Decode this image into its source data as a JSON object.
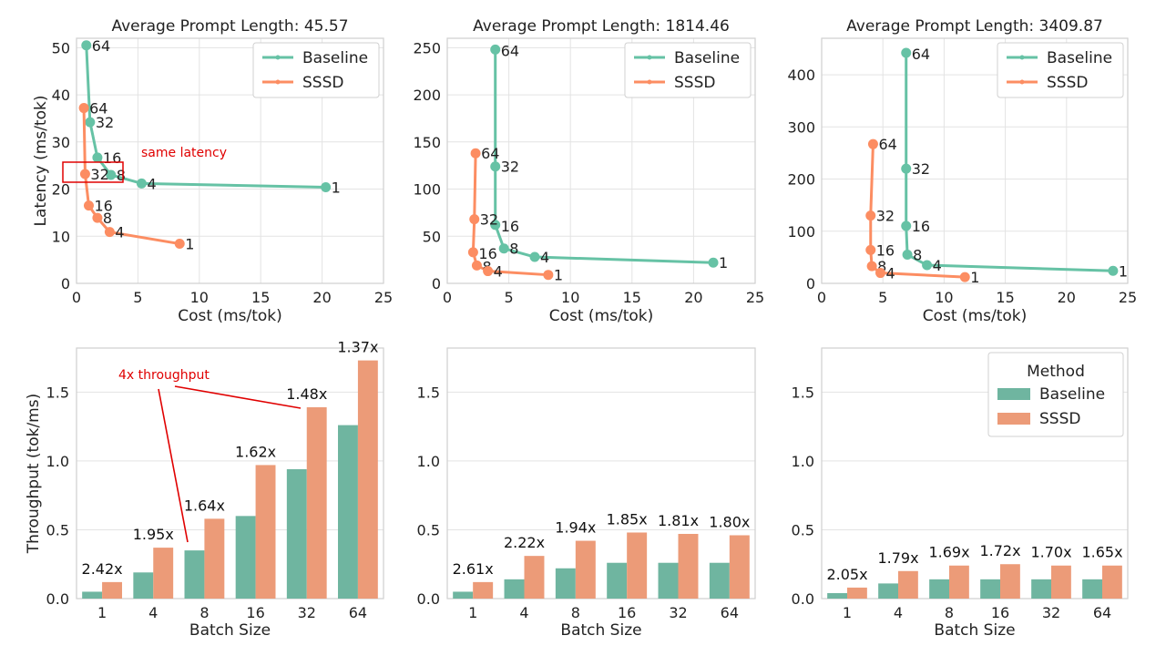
{
  "colors": {
    "baseline": "#66c2a5",
    "sssd": "#fc8d62",
    "baseline_bar": "#6fb5a0",
    "sssd_bar": "#ec9b78",
    "annotation": "#e00000"
  },
  "chart_data": [
    {
      "type": "line",
      "title": "Average Prompt Length: 45.57",
      "xlabel": "Cost (ms/tok)",
      "ylabel": "Latency (ms/tok)",
      "xlim": [
        0,
        25
      ],
      "ylim": [
        0,
        52
      ],
      "xticks": [
        0,
        5,
        10,
        15,
        20,
        25
      ],
      "yticks": [
        0,
        10,
        20,
        30,
        40,
        50
      ],
      "legend": "top-right",
      "series": [
        {
          "name": "Baseline",
          "points": [
            {
              "label": "64",
              "x": 0.8,
              "y": 50.5
            },
            {
              "label": "32",
              "x": 1.1,
              "y": 34.2
            },
            {
              "label": "16",
              "x": 1.7,
              "y": 26.7
            },
            {
              "label": "8",
              "x": 2.8,
              "y": 23.0
            },
            {
              "label": "4",
              "x": 5.3,
              "y": 21.2
            },
            {
              "label": "1",
              "x": 20.3,
              "y": 20.4
            }
          ]
        },
        {
          "name": "SSSD",
          "points": [
            {
              "label": "64",
              "x": 0.6,
              "y": 37.2
            },
            {
              "label": "32",
              "x": 0.7,
              "y": 23.2
            },
            {
              "label": "16",
              "x": 1.0,
              "y": 16.5
            },
            {
              "label": "8",
              "x": 1.7,
              "y": 13.9
            },
            {
              "label": "4",
              "x": 2.7,
              "y": 10.9
            },
            {
              "label": "1",
              "x": 8.4,
              "y": 8.4
            }
          ]
        }
      ],
      "annotation": {
        "text": "same latency"
      }
    },
    {
      "type": "line",
      "title": "Average Prompt Length: 1814.46",
      "xlabel": "Cost (ms/tok)",
      "ylabel": "",
      "xlim": [
        0,
        25
      ],
      "ylim": [
        0,
        260
      ],
      "xticks": [
        0,
        5,
        10,
        15,
        20,
        25
      ],
      "yticks": [
        0,
        50,
        100,
        150,
        200,
        250
      ],
      "legend": "top-right",
      "series": [
        {
          "name": "Baseline",
          "points": [
            {
              "label": "64",
              "x": 3.9,
              "y": 248
            },
            {
              "label": "32",
              "x": 3.9,
              "y": 124
            },
            {
              "label": "16",
              "x": 3.9,
              "y": 62
            },
            {
              "label": "8",
              "x": 4.6,
              "y": 37
            },
            {
              "label": "4",
              "x": 7.1,
              "y": 28
            },
            {
              "label": "1",
              "x": 21.6,
              "y": 22
            }
          ]
        },
        {
          "name": "SSSD",
          "points": [
            {
              "label": "64",
              "x": 2.3,
              "y": 138
            },
            {
              "label": "32",
              "x": 2.2,
              "y": 68
            },
            {
              "label": "16",
              "x": 2.1,
              "y": 33
            },
            {
              "label": "8",
              "x": 2.4,
              "y": 19
            },
            {
              "label": "4",
              "x": 3.3,
              "y": 13
            },
            {
              "label": "1",
              "x": 8.2,
              "y": 9
            }
          ]
        }
      ]
    },
    {
      "type": "line",
      "title": "Average Prompt Length: 3409.87",
      "xlabel": "Cost (ms/tok)",
      "ylabel": "",
      "xlim": [
        0,
        25
      ],
      "ylim": [
        0,
        470
      ],
      "xticks": [
        0,
        5,
        10,
        15,
        20,
        25
      ],
      "yticks": [
        0,
        100,
        200,
        300,
        400
      ],
      "legend": "top-right",
      "series": [
        {
          "name": "Baseline",
          "points": [
            {
              "label": "64",
              "x": 6.9,
              "y": 442
            },
            {
              "label": "32",
              "x": 6.9,
              "y": 220
            },
            {
              "label": "16",
              "x": 6.9,
              "y": 110
            },
            {
              "label": "8",
              "x": 7.0,
              "y": 55
            },
            {
              "label": "4",
              "x": 8.6,
              "y": 35
            },
            {
              "label": "1",
              "x": 23.8,
              "y": 24
            }
          ]
        },
        {
          "name": "SSSD",
          "points": [
            {
              "label": "64",
              "x": 4.2,
              "y": 267
            },
            {
              "label": "32",
              "x": 4.0,
              "y": 130
            },
            {
              "label": "16",
              "x": 4.0,
              "y": 64
            },
            {
              "label": "8",
              "x": 4.1,
              "y": 33
            },
            {
              "label": "4",
              "x": 4.8,
              "y": 20
            },
            {
              "label": "1",
              "x": 11.7,
              "y": 12
            }
          ]
        }
      ]
    },
    {
      "type": "bar",
      "title": "",
      "xlabel": "Batch Size",
      "ylabel": "Throughput (tok/ms)",
      "ylim": [
        0,
        1.82
      ],
      "yticks": [
        0.0,
        0.5,
        1.0,
        1.5
      ],
      "ytick_labels": [
        "0.0",
        "0.5",
        "1.0",
        "1.5"
      ],
      "categories": [
        "1",
        "4",
        "8",
        "16",
        "32",
        "64"
      ],
      "series": [
        {
          "name": "Baseline",
          "values": [
            0.05,
            0.19,
            0.35,
            0.6,
            0.94,
            1.26
          ]
        },
        {
          "name": "SSSD",
          "values": [
            0.12,
            0.37,
            0.58,
            0.97,
            1.39,
            1.73
          ]
        }
      ],
      "speedups": [
        "2.42x",
        "1.95x",
        "1.64x",
        "1.62x",
        "1.48x",
        "1.37x"
      ],
      "annotation": {
        "text": "4x throughput"
      }
    },
    {
      "type": "bar",
      "title": "",
      "xlabel": "Batch Size",
      "ylabel": "",
      "ylim": [
        0,
        1.82
      ],
      "yticks": [
        0.0,
        0.5,
        1.0,
        1.5
      ],
      "ytick_labels": [
        "0.0",
        "0.5",
        "1.0",
        "1.5"
      ],
      "categories": [
        "1",
        "4",
        "8",
        "16",
        "32",
        "64"
      ],
      "series": [
        {
          "name": "Baseline",
          "values": [
            0.05,
            0.14,
            0.22,
            0.26,
            0.26,
            0.26
          ]
        },
        {
          "name": "SSSD",
          "values": [
            0.12,
            0.31,
            0.42,
            0.48,
            0.47,
            0.46
          ]
        }
      ],
      "speedups": [
        "2.61x",
        "2.22x",
        "1.94x",
        "1.85x",
        "1.81x",
        "1.80x"
      ]
    },
    {
      "type": "bar",
      "title": "",
      "xlabel": "Batch Size",
      "ylabel": "",
      "ylim": [
        0,
        1.82
      ],
      "yticks": [
        0.0,
        0.5,
        1.0,
        1.5
      ],
      "ytick_labels": [
        "0.0",
        "0.5",
        "1.0",
        "1.5"
      ],
      "categories": [
        "1",
        "4",
        "8",
        "16",
        "32",
        "64"
      ],
      "series": [
        {
          "name": "Baseline",
          "values": [
            0.04,
            0.11,
            0.14,
            0.14,
            0.14,
            0.14
          ]
        },
        {
          "name": "SSSD",
          "values": [
            0.08,
            0.2,
            0.24,
            0.25,
            0.24,
            0.24
          ]
        }
      ],
      "speedups": [
        "2.05x",
        "1.79x",
        "1.69x",
        "1.72x",
        "1.70x",
        "1.65x"
      ],
      "legend_title": "Method",
      "legend": "top-right"
    }
  ]
}
